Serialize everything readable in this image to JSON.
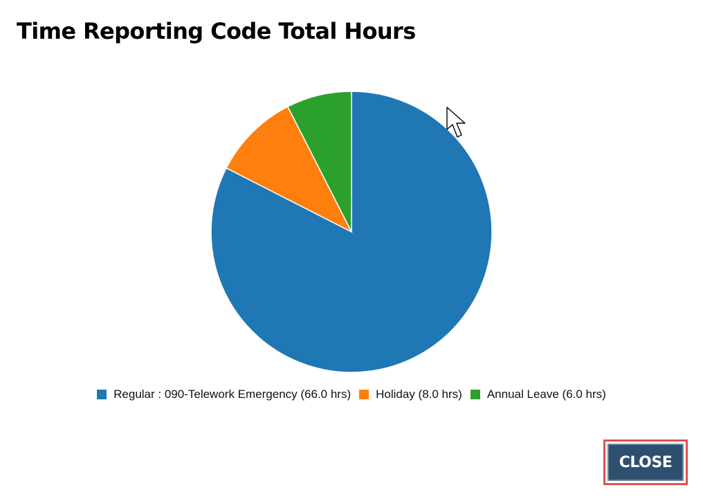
{
  "dialog": {
    "title": "Time Reporting Code Total Hours",
    "close_label": "CLOSE"
  },
  "chart_data": {
    "type": "pie",
    "title": "Time Reporting Code Total Hours",
    "legend_placement": "bottom",
    "slices": [
      {
        "label": "Regular : 090-Telework Emergency (66.0 hrs)",
        "value": 66.0,
        "color": "#1f77b4"
      },
      {
        "label": "Holiday (8.0 hrs)",
        "value": 8.0,
        "color": "#ff7f0e"
      },
      {
        "label": "Annual Leave (6.0 hrs)",
        "value": 6.0,
        "color": "#2ca02c"
      }
    ]
  },
  "colors": {
    "close_button_bg": "#2e4f6e",
    "highlight_border": "#e35050"
  },
  "icons": {
    "cursor": "mouse-pointer-icon"
  }
}
